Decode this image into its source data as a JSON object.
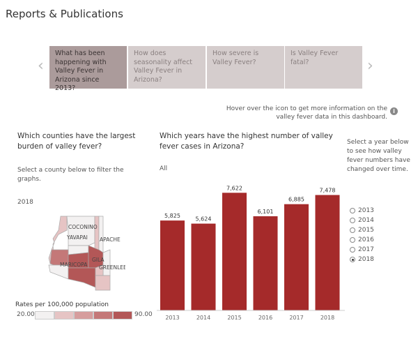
{
  "title": "Reports & Publications",
  "cards": [
    "What has been happening with Valley Fever in Arizona since 2013?",
    "How does seasonality affect Valley Fever in Arizona?",
    "How severe is Valley Fever?",
    "Is Valley Fever fatal?"
  ],
  "nav": {
    "prev": "‹",
    "next": "›"
  },
  "hover_text": "Hover over the icon to get more information on the valley fever data in this dashboard.",
  "info_icon": "i",
  "left": {
    "heading": "Which counties have the largest burden of valley fever?",
    "sub": "Select a county below to filter the graphs.",
    "year": "2018",
    "counties": [
      "COCONINO",
      "YAVAPAI",
      "APACHE",
      "MARICOPA",
      "GILA",
      "GREENLEE"
    ],
    "legend": {
      "title": "Rates per 100,000 population",
      "min": "20.00",
      "max": "90.00",
      "colors": [
        "#f3f1f1",
        "#e6c4c4",
        "#d69d9d",
        "#c47878",
        "#b35757"
      ]
    }
  },
  "right": {
    "heading": "Which years have the highest number of valley fever cases in Arizona?",
    "filter": "All"
  },
  "year_select": {
    "prompt": "Select a year below to see how valley fever numbers have changed over time.",
    "options": [
      "2013",
      "2014",
      "2015",
      "2016",
      "2017",
      "2018"
    ],
    "selected": "2018"
  },
  "chart_data": {
    "type": "bar",
    "title": "Which years have the highest number of valley fever cases in Arizona?",
    "categories": [
      "2013",
      "2014",
      "2015",
      "2016",
      "2017",
      "2018"
    ],
    "values": [
      5825,
      5624,
      7622,
      6101,
      6885,
      7478
    ],
    "labels": [
      "5,825",
      "5,624",
      "7,622",
      "6,101",
      "6,885",
      "7,478"
    ],
    "ylim": [
      0,
      8000
    ],
    "color": "#a52a2a"
  }
}
